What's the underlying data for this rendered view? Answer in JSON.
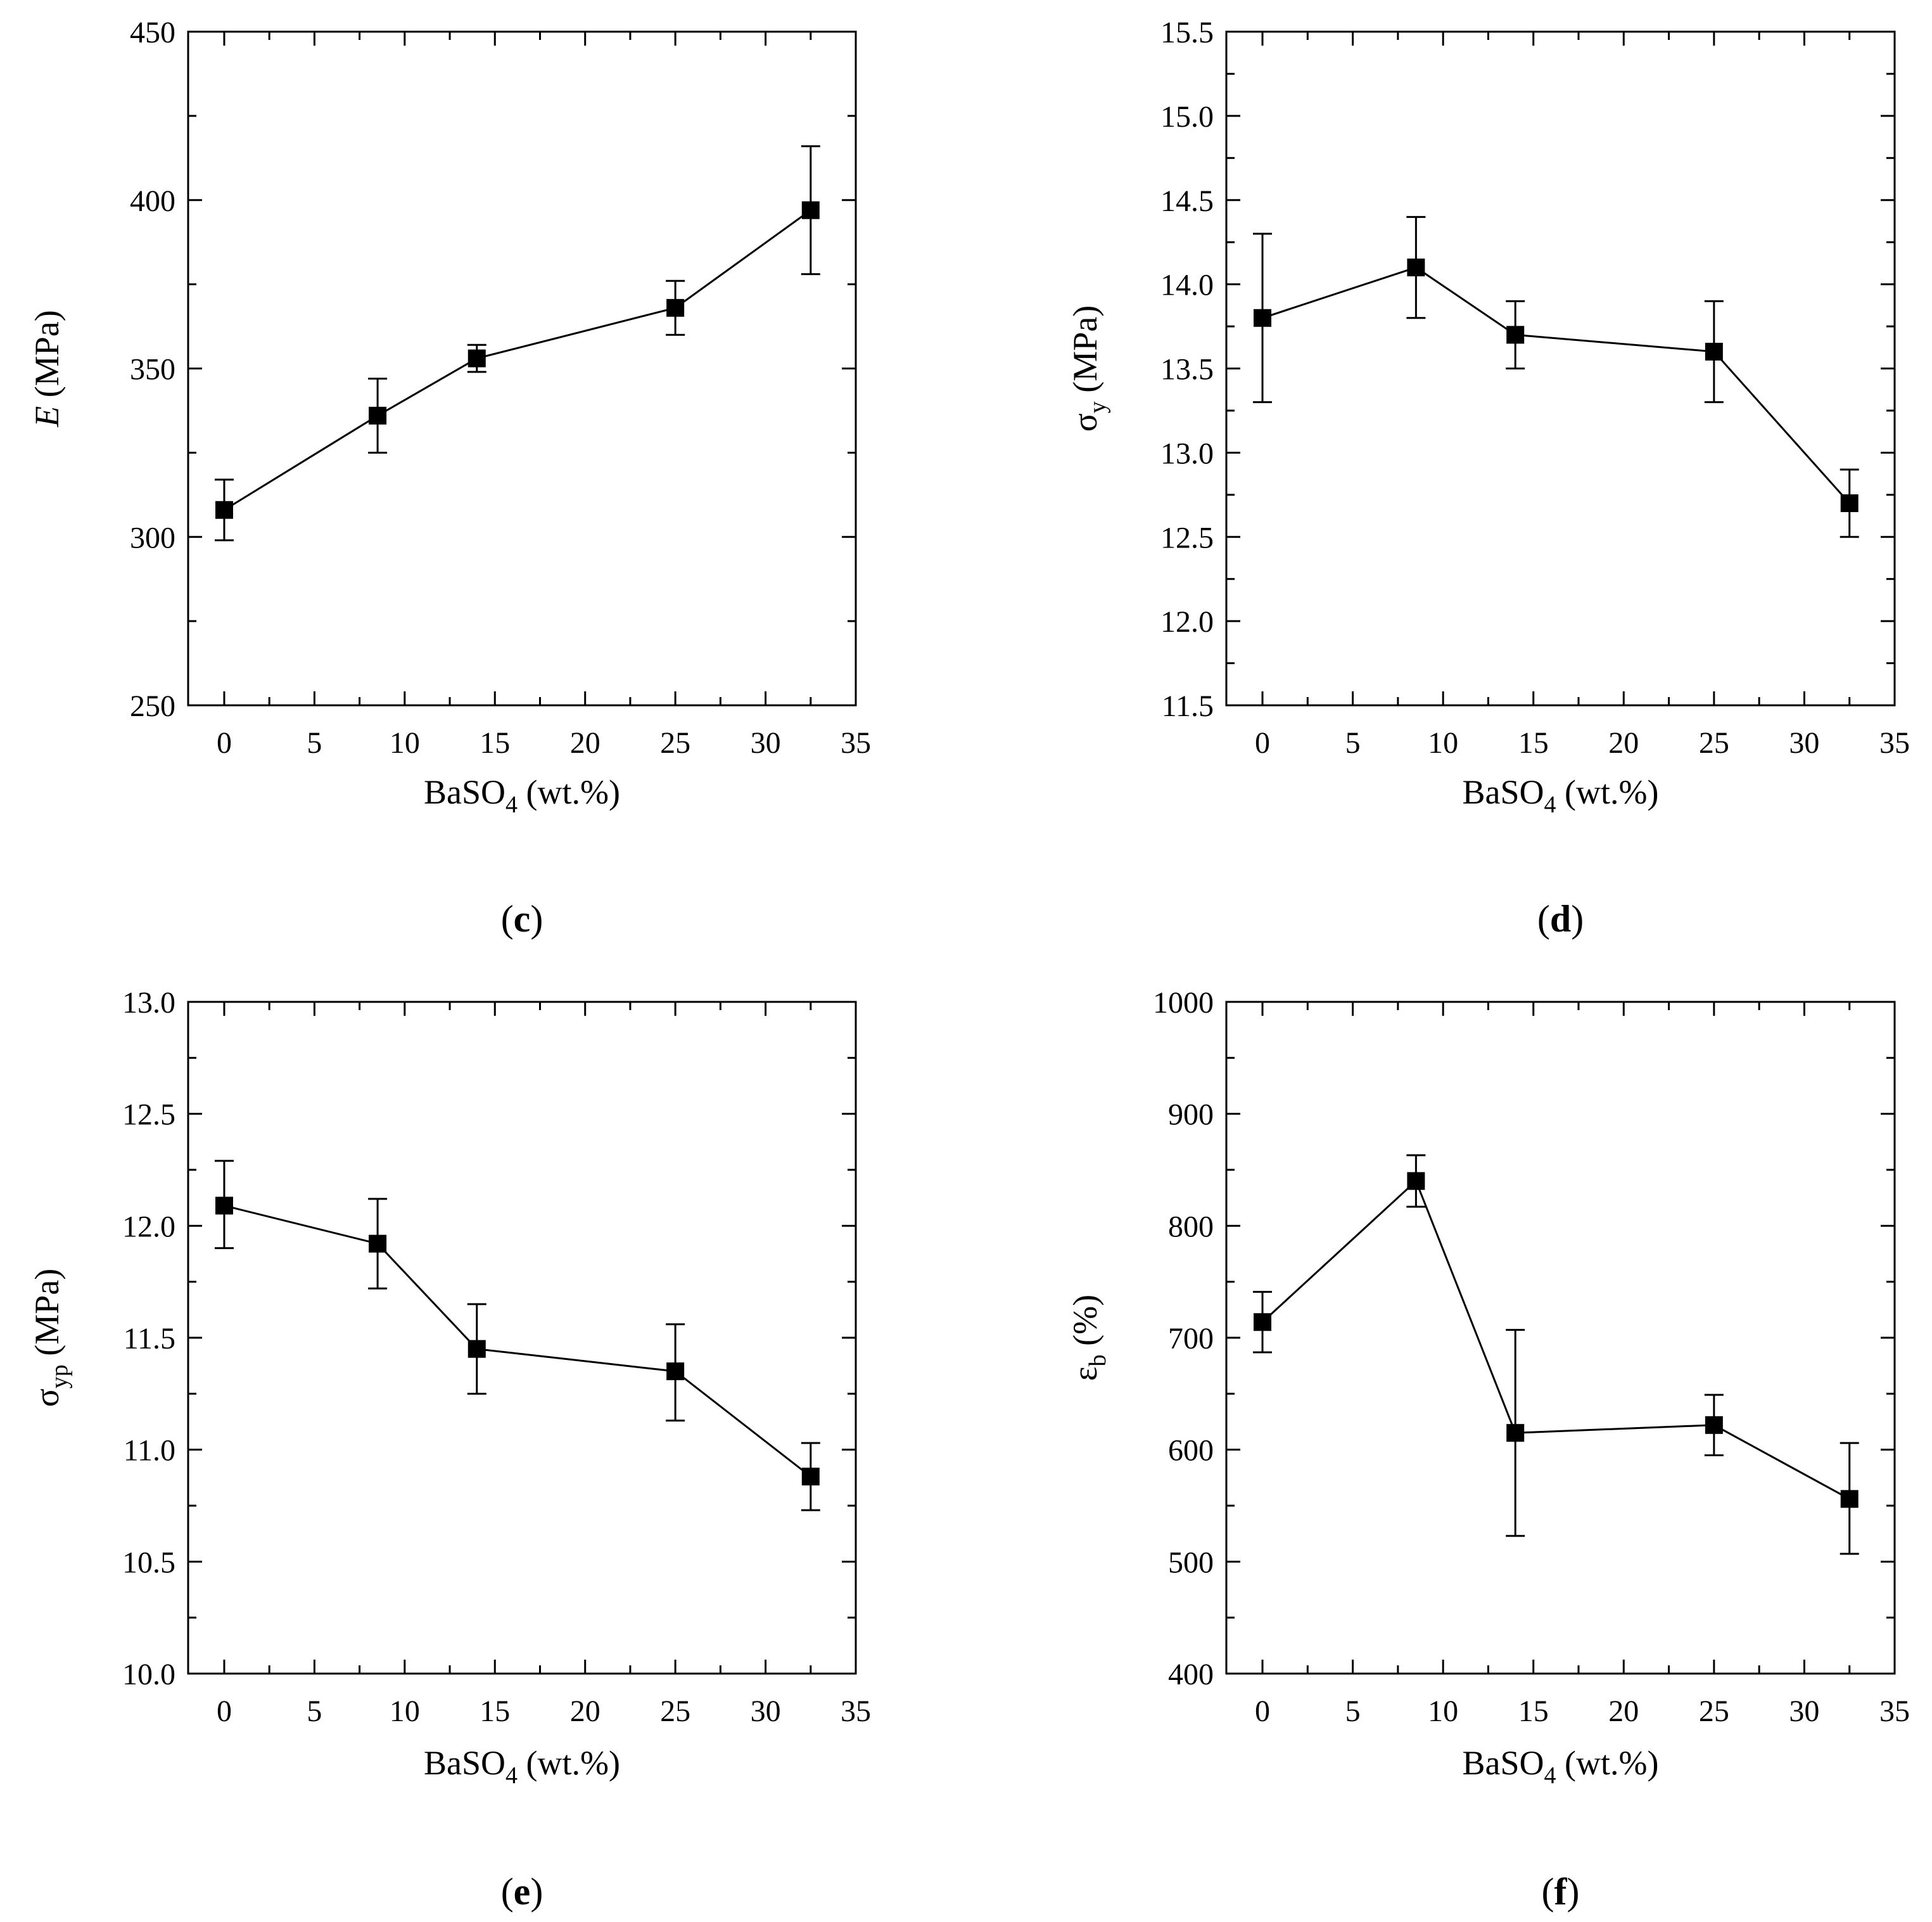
{
  "chart_data": [
    {
      "id": "c",
      "type": "line",
      "caption": "c",
      "xlabel": "BaSO",
      "xlabel_sub": "4",
      "xlabel_suffix": " (wt.%)",
      "ylabel": "E",
      "ylabel_sub": "",
      "ylabel_suffix": " (MPa)",
      "ylabel_italic": true,
      "xlim": [
        -2,
        35
      ],
      "ylim": [
        250,
        450
      ],
      "xticks": [
        0,
        5,
        10,
        15,
        20,
        25,
        30,
        35
      ],
      "yticks": [
        250,
        300,
        350,
        400,
        450
      ],
      "ytick_labels": [
        "250",
        "300",
        "350",
        "400",
        "450"
      ],
      "x": [
        0,
        8.5,
        14,
        25,
        32.5
      ],
      "y": [
        308,
        336,
        353,
        368,
        397
      ],
      "err_low": [
        299,
        325,
        349,
        360,
        378
      ],
      "err_high": [
        317,
        347,
        357,
        376,
        416
      ]
    },
    {
      "id": "d",
      "type": "line",
      "caption": "d",
      "xlabel": "BaSO",
      "xlabel_sub": "4",
      "xlabel_suffix": " (wt.%)",
      "ylabel": "σ",
      "ylabel_sub": "y",
      "ylabel_suffix": " (MPa)",
      "ylabel_italic": false,
      "xlim": [
        -2,
        35
      ],
      "ylim": [
        11.5,
        15.5
      ],
      "xticks": [
        0,
        5,
        10,
        15,
        20,
        25,
        30,
        35
      ],
      "yticks": [
        11.5,
        12.0,
        12.5,
        13.0,
        13.5,
        14.0,
        14.5,
        15.0,
        15.5
      ],
      "ytick_labels": [
        "11.5",
        "12.0",
        "12.5",
        "13.0",
        "13.5",
        "14.0",
        "14.5",
        "15.0",
        "15.5"
      ],
      "x": [
        0,
        8.5,
        14,
        25,
        32.5
      ],
      "y": [
        13.8,
        14.1,
        13.7,
        13.6,
        12.7
      ],
      "err_low": [
        13.3,
        13.8,
        13.5,
        13.3,
        12.5
      ],
      "err_high": [
        14.3,
        14.4,
        13.9,
        13.9,
        12.9
      ]
    },
    {
      "id": "e",
      "type": "line",
      "caption": "e",
      "xlabel": "BaSO",
      "xlabel_sub": "4",
      "xlabel_suffix": " (wt.%)",
      "ylabel": "σ",
      "ylabel_sub": "yp",
      "ylabel_suffix": " (MPa)",
      "ylabel_italic": false,
      "xlim": [
        -2,
        35
      ],
      "ylim": [
        10.0,
        13.0
      ],
      "xticks": [
        0,
        5,
        10,
        15,
        20,
        25,
        30,
        35
      ],
      "yticks": [
        10.0,
        10.5,
        11.0,
        11.5,
        12.0,
        12.5,
        13.0
      ],
      "ytick_labels": [
        "10.0",
        "10.5",
        "11.0",
        "11.5",
        "12.0",
        "12.5",
        "13.0"
      ],
      "x": [
        0,
        8.5,
        14,
        25,
        32.5
      ],
      "y": [
        12.09,
        11.92,
        11.45,
        11.35,
        10.88
      ],
      "err_low": [
        11.9,
        11.72,
        11.25,
        11.13,
        10.73
      ],
      "err_high": [
        12.29,
        12.12,
        11.65,
        11.56,
        11.03
      ]
    },
    {
      "id": "f",
      "type": "line",
      "caption": "f",
      "xlabel": "BaSO",
      "xlabel_sub": "4",
      "xlabel_suffix": " (wt.%)",
      "ylabel": "ε",
      "ylabel_sub": "b",
      "ylabel_suffix": " (%)",
      "ylabel_italic": false,
      "xlim": [
        -2,
        35
      ],
      "ylim": [
        400,
        1000
      ],
      "xticks": [
        0,
        5,
        10,
        15,
        20,
        25,
        30,
        35
      ],
      "yticks": [
        400,
        500,
        600,
        700,
        800,
        900,
        1000
      ],
      "ytick_labels": [
        "400",
        "500",
        "600",
        "700",
        "800",
        "900",
        "1000"
      ],
      "x": [
        0,
        8.5,
        14,
        25,
        32.5
      ],
      "y": [
        714,
        840,
        615,
        622,
        556
      ],
      "err_low": [
        687,
        817,
        523,
        595,
        507
      ],
      "err_high": [
        741,
        863,
        707,
        649,
        606
      ]
    }
  ]
}
